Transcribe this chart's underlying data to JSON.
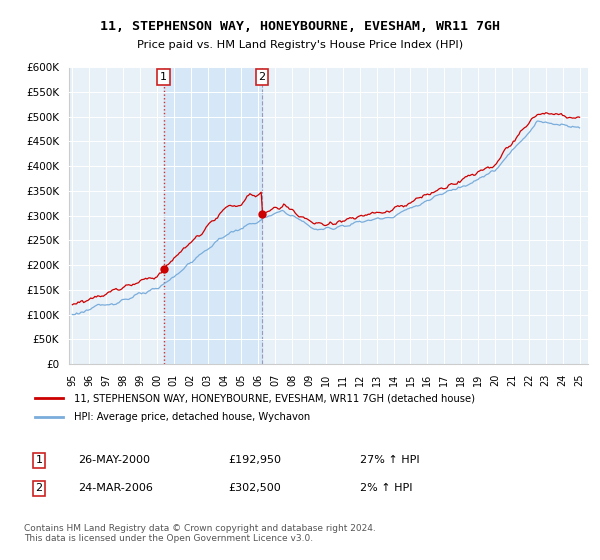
{
  "title": "11, STEPHENSON WAY, HONEYBOURNE, EVESHAM, WR11 7GH",
  "subtitle": "Price paid vs. HM Land Registry's House Price Index (HPI)",
  "sale1_date": "26-MAY-2000",
  "sale1_price": 192950,
  "sale1_pct": "27% ↑ HPI",
  "sale2_date": "24-MAR-2006",
  "sale2_price": 302500,
  "sale2_pct": "2% ↑ HPI",
  "legend_property": "11, STEPHENSON WAY, HONEYBOURNE, EVESHAM, WR11 7GH (detached house)",
  "legend_hpi": "HPI: Average price, detached house, Wychavon",
  "footnote": "Contains HM Land Registry data © Crown copyright and database right 2024.\nThis data is licensed under the Open Government Licence v3.0.",
  "hpi_color": "#7aaddb",
  "property_color": "#cc0000",
  "sale1_x": 2000.4,
  "sale2_x": 2006.22,
  "shade_color": "#d6e8f7",
  "plot_bg": "#e8f0f8",
  "grid_color": "white",
  "ylim": [
    0,
    600000
  ],
  "xlim_start": 1994.8,
  "xlim_end": 2025.5
}
